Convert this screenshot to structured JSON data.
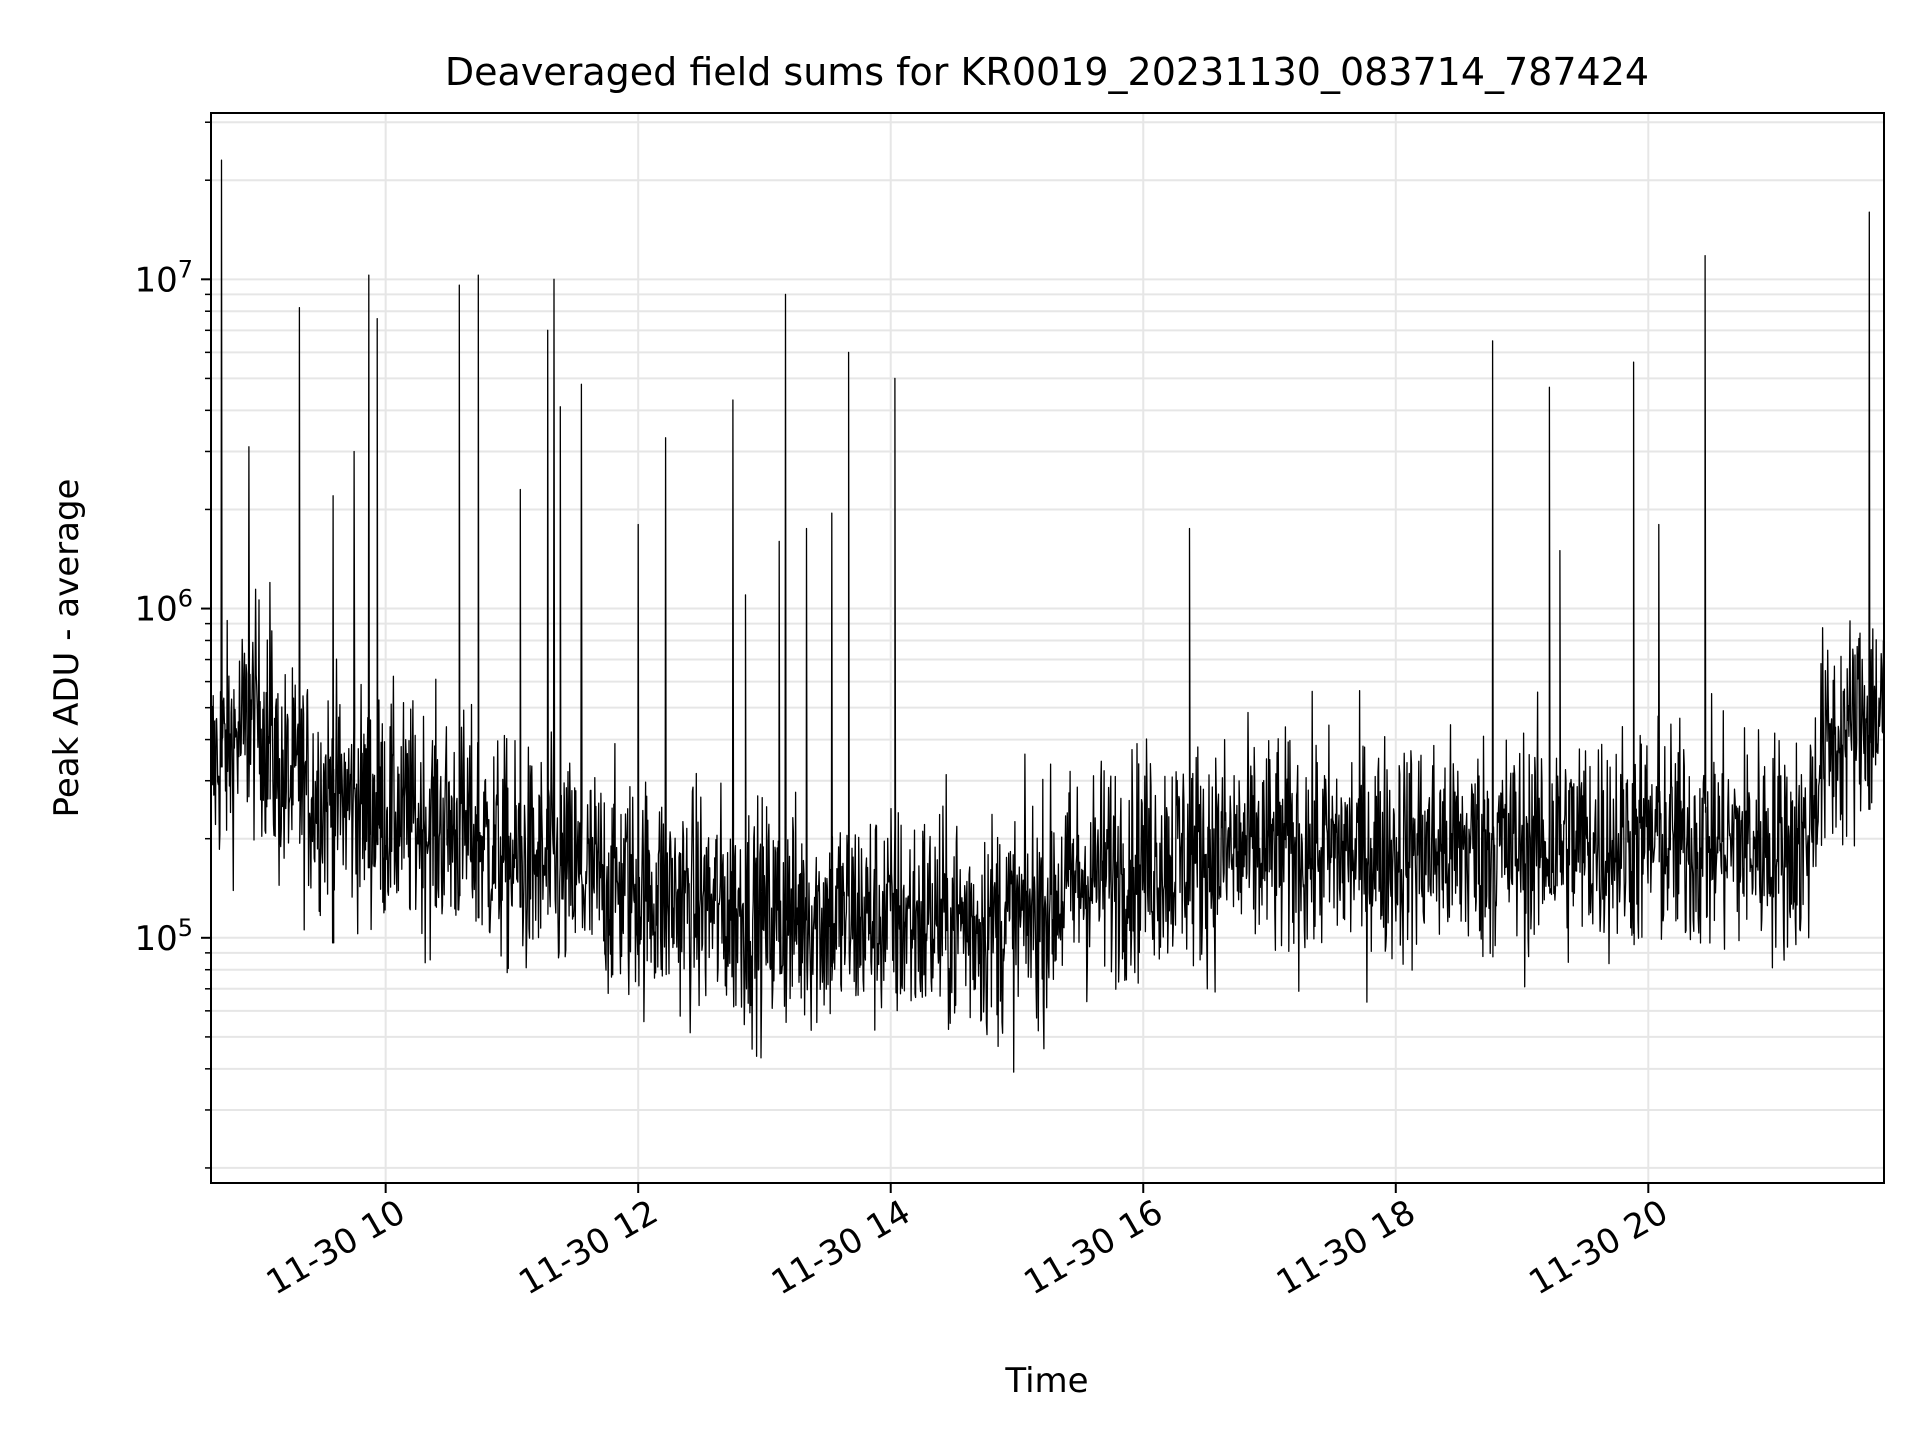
{
  "chart_data": {
    "type": "line",
    "title": "Deaveraged field sums for KR0019_20231130_083714_787424",
    "xlabel": "Time",
    "ylabel": "Peak ADU - average",
    "x_range": [
      "2023-11-30T08:37",
      "2023-11-30T21:52"
    ],
    "xtick_labels": [
      "11-30 10",
      "11-30 12",
      "11-30 14",
      "11-30 16",
      "11-30 18",
      "11-30 20"
    ],
    "xtick_values": [
      "2023-11-30T10:00",
      "2023-11-30T12:00",
      "2023-11-30T14:00",
      "2023-11-30T16:00",
      "2023-11-30T18:00",
      "2023-11-30T20:00"
    ],
    "yscale": "log",
    "ylim": [
      18000,
      32000000
    ],
    "ytick_labels": [
      {
        "base": "10",
        "exp": "5"
      },
      {
        "base": "10",
        "exp": "6"
      },
      {
        "base": "10",
        "exp": "7"
      }
    ],
    "ytick_values": [
      100000,
      1000000,
      10000000
    ],
    "grid": true,
    "line_color": "#000000",
    "grid_color": "#e6e6e6",
    "series": [
      {
        "baseline": [
          {
            "t": "2023-11-30T08:37",
            "v": 330000
          },
          {
            "t": "2023-11-30T09:00",
            "v": 480000
          },
          {
            "t": "2023-11-30T09:10",
            "v": 300000
          },
          {
            "t": "2023-11-30T10:00",
            "v": 240000
          },
          {
            "t": "2023-11-30T10:40",
            "v": 210000
          },
          {
            "t": "2023-11-30T11:00",
            "v": 170000
          },
          {
            "t": "2023-11-30T12:00",
            "v": 140000
          },
          {
            "t": "2023-11-30T13:00",
            "v": 115000
          },
          {
            "t": "2023-11-30T14:00",
            "v": 115000
          },
          {
            "t": "2023-11-30T15:00",
            "v": 110000
          },
          {
            "t": "2023-11-30T15:30",
            "v": 150000
          },
          {
            "t": "2023-11-30T16:00",
            "v": 175000
          },
          {
            "t": "2023-11-30T17:00",
            "v": 185000
          },
          {
            "t": "2023-11-30T18:00",
            "v": 185000
          },
          {
            "t": "2023-11-30T19:00",
            "v": 190000
          },
          {
            "t": "2023-11-30T20:00",
            "v": 200000
          },
          {
            "t": "2023-11-30T21:15",
            "v": 190000
          },
          {
            "t": "2023-11-30T21:22",
            "v": 360000
          },
          {
            "t": "2023-11-30T21:52",
            "v": 520000
          }
        ],
        "spikes": [
          {
            "t": "2023-11-30T08:42",
            "v": 23000000
          },
          {
            "t": "2023-11-30T08:55",
            "v": 3100000
          },
          {
            "t": "2023-11-30T09:05",
            "v": 1200000
          },
          {
            "t": "2023-11-30T09:19",
            "v": 8200000
          },
          {
            "t": "2023-11-30T09:35",
            "v": 2200000
          },
          {
            "t": "2023-11-30T09:45",
            "v": 3000000
          },
          {
            "t": "2023-11-30T09:52",
            "v": 10300000
          },
          {
            "t": "2023-11-30T09:56",
            "v": 7600000
          },
          {
            "t": "2023-11-30T10:35",
            "v": 9600000
          },
          {
            "t": "2023-11-30T10:44",
            "v": 10300000
          },
          {
            "t": "2023-11-30T11:04",
            "v": 2300000
          },
          {
            "t": "2023-11-30T11:17",
            "v": 7000000
          },
          {
            "t": "2023-11-30T11:20",
            "v": 10000000
          },
          {
            "t": "2023-11-30T11:23",
            "v": 4100000
          },
          {
            "t": "2023-11-30T11:33",
            "v": 4800000
          },
          {
            "t": "2023-11-30T12:00",
            "v": 1800000
          },
          {
            "t": "2023-11-30T12:13",
            "v": 3300000
          },
          {
            "t": "2023-11-30T12:45",
            "v": 4300000
          },
          {
            "t": "2023-11-30T12:51",
            "v": 1100000
          },
          {
            "t": "2023-11-30T13:07",
            "v": 1600000
          },
          {
            "t": "2023-11-30T13:10",
            "v": 9000000
          },
          {
            "t": "2023-11-30T13:20",
            "v": 1750000
          },
          {
            "t": "2023-11-30T13:32",
            "v": 1950000
          },
          {
            "t": "2023-11-30T13:40",
            "v": 6000000
          },
          {
            "t": "2023-11-30T14:02",
            "v": 5000000
          },
          {
            "t": "2023-11-30T16:22",
            "v": 1750000
          },
          {
            "t": "2023-11-30T18:46",
            "v": 6500000
          },
          {
            "t": "2023-11-30T19:13",
            "v": 4700000
          },
          {
            "t": "2023-11-30T19:18",
            "v": 1500000
          },
          {
            "t": "2023-11-30T19:53",
            "v": 5600000
          },
          {
            "t": "2023-11-30T20:05",
            "v": 1800000
          },
          {
            "t": "2023-11-30T20:27",
            "v": 11800000
          },
          {
            "t": "2023-11-30T21:45",
            "v": 16000000
          }
        ]
      }
    ]
  }
}
